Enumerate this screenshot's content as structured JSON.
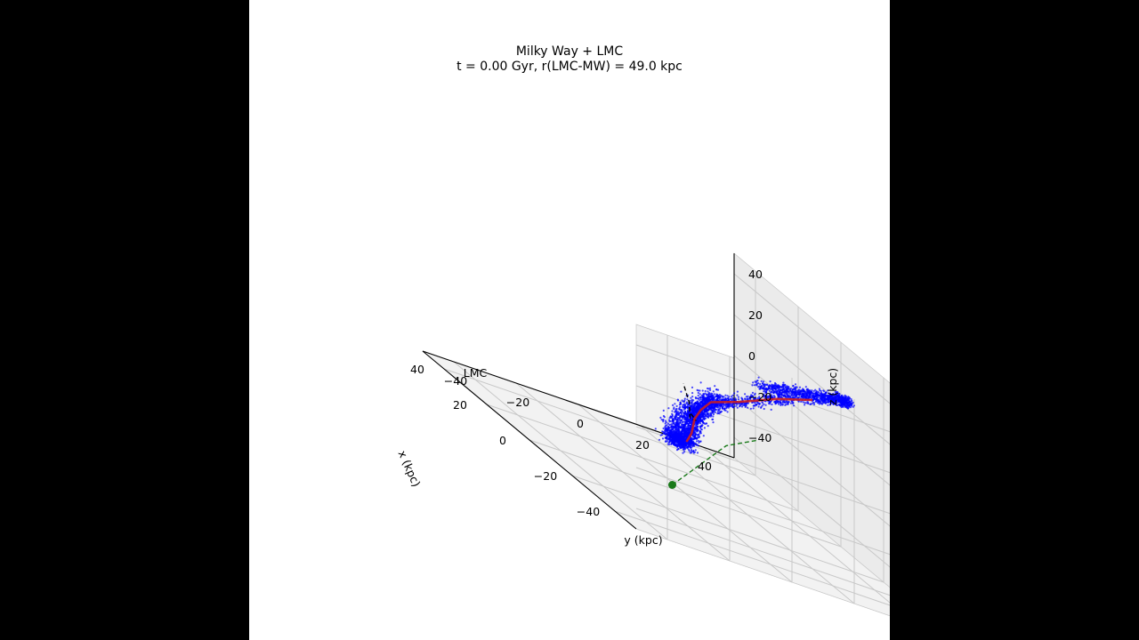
{
  "colors": {
    "background": "#000000",
    "panel": "#ffffff",
    "pane": "#f2f2f2",
    "grid": "#c8c8c8",
    "particles": "#0000ff",
    "stream_track": "#cc1f1f",
    "lmc_orbit": "#1a7a1a",
    "mw_orbit": "#000000"
  },
  "chart_data": {
    "type": "scatter",
    "projection": "3d",
    "title": "Milky Way + LMC",
    "subtitle": "t = 0.00 Gyr, r(LMC-MW) = 49.0 kpc",
    "xlabel": "x (kpc)",
    "ylabel": "y (kpc)",
    "zlabel": "z (kpc)",
    "xlim": [
      -50,
      50
    ],
    "ylim": [
      -50,
      50
    ],
    "zlim": [
      -50,
      50
    ],
    "x_ticks": [
      "−40",
      "−20",
      "0",
      "20",
      "40"
    ],
    "y_ticks": [
      "−40",
      "−20",
      "0",
      "20",
      "40"
    ],
    "z_ticks": [
      "40",
      "20",
      "0",
      "−20",
      "−40"
    ],
    "grid": true,
    "view": {
      "elevation": 30,
      "azimuth": -20
    },
    "annotations": [
      {
        "text": "LMC",
        "x": -45,
        "y": -35,
        "z": -25
      }
    ],
    "series": [
      {
        "kind": "particles",
        "color": "#0000ff",
        "spine": [
          [
            -5,
            -3,
            -22
          ],
          [
            -3,
            0,
            -18
          ],
          [
            0,
            3,
            -12
          ],
          [
            -3,
            3,
            -5
          ],
          [
            -12,
            0,
            5
          ],
          [
            -28,
            -2,
            18
          ],
          [
            -40,
            2,
            32
          ],
          [
            -45,
            12,
            42
          ],
          [
            -43,
            22,
            45
          ],
          [
            -38,
            25,
            40
          ],
          [
            -30,
            20,
            35
          ],
          [
            -25,
            15,
            30
          ],
          [
            -20,
            10,
            25
          ]
        ],
        "lower_spine": [
          [
            -5,
            -3,
            -22
          ],
          [
            5,
            0,
            -28
          ],
          [
            15,
            8,
            -32
          ],
          [
            25,
            15,
            -32
          ],
          [
            35,
            25,
            -28
          ],
          [
            42,
            35,
            -25
          ],
          [
            45,
            42,
            -20
          ]
        ]
      },
      {
        "kind": "stream-track",
        "color": "#cc1f1f",
        "points": [
          [
            -5,
            -3,
            -22
          ],
          [
            -3,
            0,
            -18
          ],
          [
            0,
            3,
            -12
          ],
          [
            -3,
            3,
            -5
          ],
          [
            -12,
            0,
            5
          ],
          [
            -28,
            -2,
            18
          ],
          [
            -40,
            2,
            32
          ],
          [
            -45,
            10,
            40
          ]
        ]
      },
      {
        "kind": "mw-orbit",
        "color": "#000000",
        "style": "dashed",
        "points": [
          [
            -10,
            -5,
            -5
          ],
          [
            -5,
            0,
            -10
          ],
          [
            5,
            5,
            -15
          ],
          [
            20,
            15,
            -15
          ],
          [
            30,
            20,
            -12
          ]
        ]
      },
      {
        "kind": "lmc-orbit",
        "color": "#1a7a1a",
        "style": "dashed",
        "current_marker": true,
        "points": [
          [
            -45,
            -35,
            -25
          ],
          [
            -30,
            -20,
            -25
          ],
          [
            -10,
            0,
            -25
          ],
          [
            10,
            20,
            -25
          ],
          [
            25,
            40,
            -25
          ]
        ]
      }
    ]
  }
}
